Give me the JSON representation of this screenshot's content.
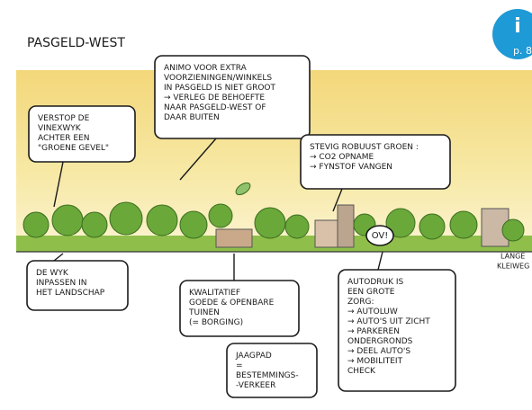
{
  "title": "PASGELD-WEST",
  "badge": {
    "icon": "i",
    "page": "p. 86"
  },
  "bubbles": [
    {
      "lines": [
        "VERSTOP DE",
        "VINEXWYK",
        "ACHTER EEN",
        "\"GROENE GEVEL\""
      ]
    },
    {
      "lines": [
        "ANIMO VOOR EXTRA",
        "VOORZIENINGEN/WINKELS",
        "IN PASGELD IS NIET GROOT",
        "→ VERLEG DE BEHOEFTE",
        "NAAR PASGELD-WEST OF",
        "DAAR BUITEN"
      ]
    },
    {
      "lines": [
        "STEVIG ROBUUST GROEN :",
        "→ CO2 OPNAME",
        "→ FYNSTOF VANGEN"
      ]
    },
    {
      "lines": [
        "DE WYK",
        "INPASSEN IN",
        "HET LANDSCHAP"
      ]
    },
    {
      "lines": [
        "KWALITATIEF",
        "GOEDE & OPENBARE",
        "TUINEN",
        "(= BORGING)"
      ]
    },
    {
      "lines": [
        "AUTODRUK IS",
        "EEN GROTE",
        "ZORG:",
        "→ AUTOLUW",
        "→ AUTO'S UIT ZICHT",
        "→ PARKEREN",
        "   ONDERGRONDS",
        "→ DEEL AUTO'S",
        "→ MOBILITEIT",
        "   CHECK"
      ]
    },
    {
      "lines": [
        "JAAGPAD",
        "=",
        "BESTEMMINGS-",
        "-VERKEER"
      ]
    }
  ],
  "ov": "OV!",
  "place": [
    "LANGE",
    "KLEIWEG"
  ]
}
